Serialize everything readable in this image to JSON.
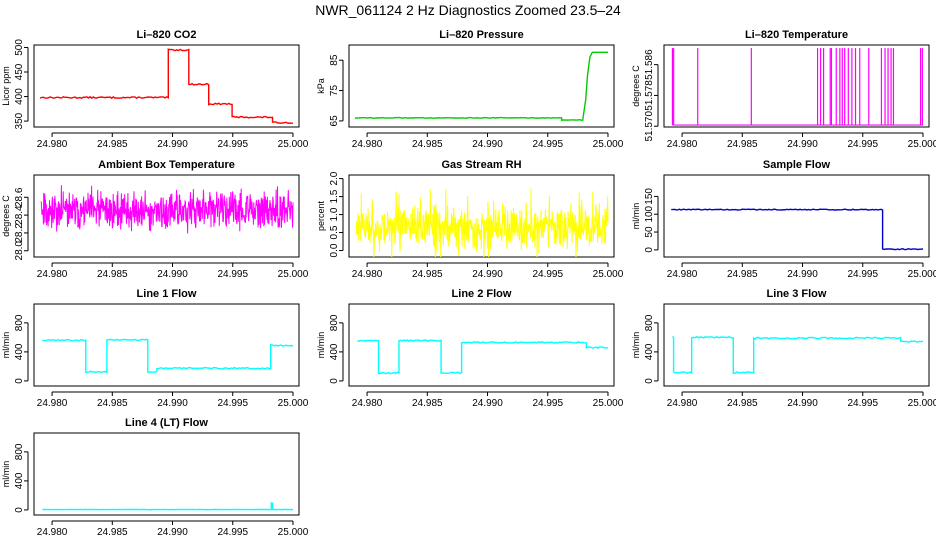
{
  "figure_title": "NWR_061124  2 Hz Diagnostics Zoomed 23.5–24",
  "chart_data": [
    {
      "type": "line",
      "title": "Li–820 CO2",
      "ylabel": "Licor ppm",
      "color": "#ff0000",
      "xlim": [
        24.9785,
        25.0005
      ],
      "ylim": [
        338,
        505
      ],
      "xticks": [
        24.98,
        24.985,
        24.99,
        24.995,
        25.0
      ],
      "xtick_labels": [
        "24.980",
        "24.985",
        "24.990",
        "24.995",
        "25.000"
      ],
      "yticks": [
        350,
        400,
        450,
        500
      ],
      "ytick_labels": [
        "350",
        "400",
        "450",
        "500"
      ],
      "noise": 1.5,
      "segments": [
        [
          24.979,
          24.98965,
          398
        ],
        [
          24.98965,
          24.99135,
          495
        ],
        [
          24.99135,
          24.993,
          425
        ],
        [
          24.993,
          24.99495,
          385
        ],
        [
          24.99495,
          24.9983,
          358
        ],
        [
          24.9983,
          25.0,
          347
        ]
      ]
    },
    {
      "type": "line",
      "title": "Li–820 Pressure",
      "ylabel": "kPa",
      "color": "#00cc00",
      "xlim": [
        24.9785,
        25.0005
      ],
      "ylim": [
        63,
        90
      ],
      "xticks": [
        24.98,
        24.985,
        24.99,
        24.995,
        25.0
      ],
      "xtick_labels": [
        "24.980",
        "24.985",
        "24.990",
        "24.995",
        "25.000"
      ],
      "yticks": [
        65,
        75,
        85
      ],
      "ytick_labels": [
        "65",
        "75",
        "85"
      ],
      "noise": 0.1,
      "segments": [
        [
          24.979,
          24.99615,
          66
        ],
        [
          24.99615,
          24.9979,
          65.3
        ]
      ],
      "ramp": [
        [
          24.9979,
          65.3
        ],
        [
          24.99815,
          72
        ],
        [
          24.9983,
          80
        ],
        [
          24.9985,
          86
        ],
        [
          24.9987,
          87.6
        ],
        [
          25.0,
          87.6
        ]
      ]
    },
    {
      "type": "spikes",
      "title": "Li–820 Temperature",
      "ylabel": "degrees C",
      "color": "#ff00ff",
      "xlim": [
        24.9785,
        25.0005
      ],
      "ylim": [
        51.5698,
        51.5911
      ],
      "xticks": [
        24.98,
        24.985,
        24.99,
        24.995,
        25.0
      ],
      "xtick_labels": [
        "24.980",
        "24.985",
        "24.990",
        "24.995",
        "25.000"
      ],
      "yticks": [
        51.57,
        51.578,
        51.586
      ],
      "ytick_labels": [
        "51.570",
        "51.578",
        "51.586"
      ],
      "baseline": 51.5703,
      "peak": 51.5903,
      "spike_x": [
        24.9792,
        24.9793,
        24.9813,
        24.98575,
        24.99125,
        24.9915,
        24.99175,
        24.9923,
        24.9924,
        24.9928,
        24.9931,
        24.9933,
        24.9935,
        24.9938,
        24.9941,
        24.9944,
        24.99475,
        24.9955,
        24.99655,
        24.99685,
        24.9971,
        24.99735,
        24.99755,
        24.9998,
        24.99995
      ]
    },
    {
      "type": "noise",
      "title": "Ambient Box Temperature",
      "ylabel": "degrees C",
      "color": "#ff00ff",
      "xlim": [
        24.9785,
        25.0005
      ],
      "ylim": [
        27.93,
        28.85
      ],
      "xticks": [
        24.98,
        24.985,
        24.99,
        24.995,
        25.0
      ],
      "xtick_labels": [
        "24.980",
        "24.985",
        "24.990",
        "24.995",
        "25.000"
      ],
      "yticks": [
        28.0,
        28.2,
        28.4,
        28.6
      ],
      "ytick_labels": [
        "28.0",
        "28.2",
        "28.4",
        "28.6"
      ],
      "x_range": [
        24.9791,
        25.0
      ],
      "center": 28.45,
      "spread": 0.13,
      "amp": 0.24,
      "n": 700,
      "seed": 11
    },
    {
      "type": "noise",
      "title": "Gas Stream RH",
      "ylabel": "percent",
      "color": "#ffff00",
      "xlim": [
        24.9785,
        25.0005
      ],
      "ylim": [
        -0.18,
        2.1
      ],
      "xticks": [
        24.98,
        24.985,
        24.99,
        24.995,
        25.0
      ],
      "xtick_labels": [
        "24.980",
        "24.985",
        "24.990",
        "24.995",
        "25.000"
      ],
      "yticks": [
        0.0,
        0.5,
        1.0,
        1.5,
        2.0
      ],
      "ytick_labels": [
        "0.0",
        "0.5",
        "1.0",
        "1.5",
        "2.0"
      ],
      "x_range": [
        24.9791,
        25.0
      ],
      "center": 0.65,
      "spread": 0.35,
      "amp": 1.1,
      "n": 700,
      "seed": 23
    },
    {
      "type": "line",
      "title": "Sample Flow",
      "ylabel": "ml/min",
      "color": "#0000cc",
      "xlim": [
        24.9785,
        25.0005
      ],
      "ylim": [
        -20,
        210
      ],
      "xticks": [
        24.98,
        24.985,
        24.99,
        24.995,
        25.0
      ],
      "xtick_labels": [
        "24.980",
        "24.985",
        "24.990",
        "24.995",
        "25.000"
      ],
      "yticks": [
        0,
        50,
        100,
        150
      ],
      "ytick_labels": [
        "0",
        "50",
        "100",
        "150"
      ],
      "noise": 1.2,
      "segments": [
        [
          24.9791,
          24.99665,
          113
        ],
        [
          24.99665,
          25.0,
          2
        ]
      ]
    },
    {
      "type": "line",
      "title": "Line 1 Flow",
      "ylabel": "ml/min",
      "color": "#00ffff",
      "xlim": [
        24.9785,
        25.0005
      ],
      "ylim": [
        -70,
        1060
      ],
      "xticks": [
        24.98,
        24.985,
        24.99,
        24.995,
        25.0
      ],
      "xtick_labels": [
        "24.980",
        "24.985",
        "24.990",
        "24.995",
        "25.000"
      ],
      "yticks": [
        0,
        400,
        800
      ],
      "ytick_labels": [
        "0",
        "400",
        "800"
      ],
      "noise": 9,
      "segments": [
        [
          24.9792,
          24.9828,
          560
        ],
        [
          24.9828,
          24.98455,
          125
        ],
        [
          24.98455,
          24.98795,
          565
        ],
        [
          24.98795,
          24.9887,
          125
        ],
        [
          24.9887,
          24.99815,
          175
        ],
        [
          24.99815,
          25.0,
          490
        ]
      ]
    },
    {
      "type": "line",
      "title": "Line 2 Flow",
      "ylabel": "ml/min",
      "color": "#00ffff",
      "xlim": [
        24.9785,
        25.0005
      ],
      "ylim": [
        -70,
        1060
      ],
      "xticks": [
        24.98,
        24.985,
        24.99,
        24.995,
        25.0
      ],
      "xtick_labels": [
        "24.980",
        "24.985",
        "24.990",
        "24.995",
        "25.000"
      ],
      "yticks": [
        0,
        400,
        800
      ],
      "ytick_labels": [
        "0",
        "400",
        "800"
      ],
      "noise": 9,
      "segments": [
        [
          24.9792,
          24.98095,
          555
        ],
        [
          24.98095,
          24.98265,
          110
        ],
        [
          24.98265,
          24.98615,
          555
        ],
        [
          24.98615,
          24.98785,
          110
        ],
        [
          24.98785,
          24.9982,
          530
        ],
        [
          24.9982,
          25.0,
          460
        ]
      ]
    },
    {
      "type": "line",
      "title": "Line 3 Flow",
      "ylabel": "ml/min",
      "color": "#00ffff",
      "xlim": [
        24.9785,
        25.0005
      ],
      "ylim": [
        -70,
        1060
      ],
      "xticks": [
        24.98,
        24.985,
        24.99,
        24.995,
        25.0
      ],
      "xtick_labels": [
        "24.980",
        "24.985",
        "24.990",
        "24.995",
        "25.000"
      ],
      "yticks": [
        0,
        400,
        800
      ],
      "ytick_labels": [
        "0",
        "400",
        "800"
      ],
      "noise": 10,
      "segments": [
        [
          24.9792,
          24.9793,
          600
        ],
        [
          24.9793,
          24.9808,
          115
        ],
        [
          24.9808,
          24.98425,
          600
        ],
        [
          24.98425,
          24.98595,
          115
        ],
        [
          24.98595,
          24.99815,
          590
        ],
        [
          24.99815,
          25.0,
          540
        ]
      ]
    },
    {
      "type": "line",
      "title": "Line 4 (LT) Flow",
      "ylabel": "ml/min",
      "color": "#00ffff",
      "xlim": [
        24.9785,
        25.0005
      ],
      "ylim": [
        -70,
        1060
      ],
      "xticks": [
        24.98,
        24.985,
        24.99,
        24.995,
        25.0
      ],
      "xtick_labels": [
        "24.980",
        "24.985",
        "24.990",
        "24.995",
        "25.000"
      ],
      "yticks": [
        0,
        400,
        800
      ],
      "ytick_labels": [
        "0",
        "400",
        "800"
      ],
      "noise": 2,
      "segments": [
        [
          24.9792,
          24.9982,
          5
        ],
        [
          24.9982,
          24.9983,
          95
        ],
        [
          24.9983,
          25.0,
          5
        ]
      ]
    }
  ]
}
